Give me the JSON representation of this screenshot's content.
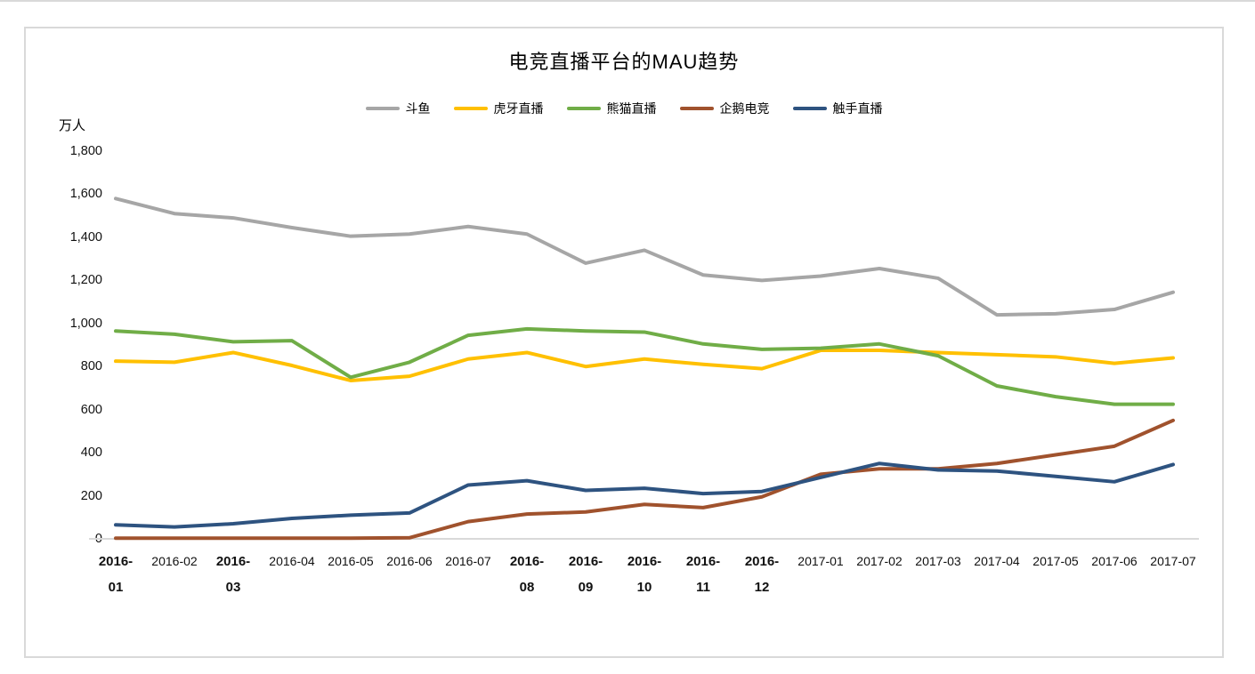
{
  "page": {
    "background_color": "#FFFFFF",
    "top_rule_color": "#D9D9D9",
    "frame_border_color": "#D9D9D9"
  },
  "chart_data": {
    "type": "line",
    "title": "电竞直播平台的MAU趋势",
    "y_unit_label": "万人",
    "gridlines": false,
    "axis_line_color": "#D9D9D9",
    "legend_position": "top",
    "y_axis": {
      "min": 0,
      "max": 1800,
      "tick_step": 200,
      "tick_labels": [
        "0",
        "200",
        "400",
        "600",
        "800",
        "1,000",
        "1,200",
        "1,400",
        "1,600",
        "1,800"
      ]
    },
    "x_axis": {
      "categories": [
        "2016-01",
        "2016-02",
        "2016-03",
        "2016-04",
        "2016-05",
        "2016-06",
        "2016-07",
        "2016-08",
        "2016-09",
        "2016-10",
        "2016-11",
        "2016-12",
        "2017-01",
        "2017-02",
        "2017-03",
        "2017-04",
        "2017-05",
        "2017-06",
        "2017-07"
      ],
      "two_line_labels": [
        "2016-01",
        "2016-03",
        "2016-08",
        "2016-09",
        "2016-10",
        "2016-11",
        "2016-12"
      ]
    },
    "series": [
      {
        "id": "douyu",
        "name": "斗鱼",
        "color": "#A6A6A6",
        "values": [
          1580,
          1510,
          1490,
          1445,
          1405,
          1415,
          1450,
          1415,
          1280,
          1340,
          1225,
          1200,
          1220,
          1255,
          1210,
          1040,
          1045,
          1065,
          1145
        ]
      },
      {
        "id": "huya",
        "name": "虎牙直播",
        "color": "#FFC000",
        "values": [
          825,
          820,
          865,
          805,
          735,
          755,
          835,
          865,
          800,
          835,
          810,
          790,
          875,
          875,
          865,
          855,
          845,
          815,
          840
        ]
      },
      {
        "id": "panda",
        "name": "熊猫直播",
        "color": "#70AD47",
        "values": [
          965,
          950,
          915,
          920,
          750,
          820,
          945,
          975,
          965,
          960,
          905,
          880,
          885,
          905,
          850,
          710,
          660,
          625,
          625
        ]
      },
      {
        "id": "qie",
        "name": "企鹅电竞",
        "color": "#A0522D",
        "values": [
          3,
          3,
          3,
          3,
          3,
          5,
          80,
          115,
          125,
          160,
          145,
          195,
          300,
          325,
          325,
          350,
          390,
          430,
          550
        ]
      },
      {
        "id": "chushou",
        "name": "触手直播",
        "color": "#2E5380",
        "values": [
          65,
          55,
          70,
          95,
          110,
          120,
          250,
          270,
          225,
          235,
          210,
          220,
          285,
          350,
          320,
          315,
          290,
          265,
          345
        ]
      }
    ]
  }
}
